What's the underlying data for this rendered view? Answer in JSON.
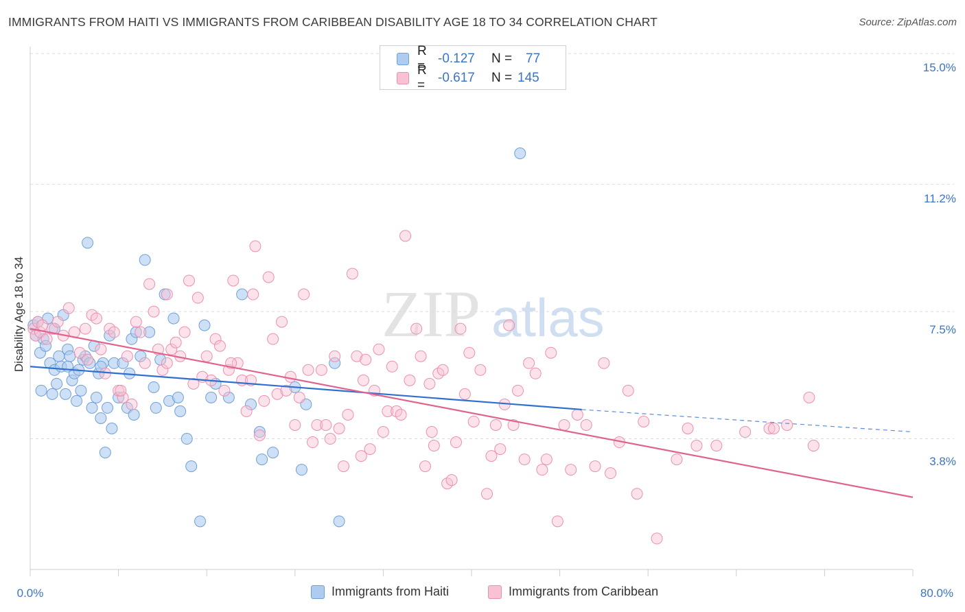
{
  "title": "IMMIGRANTS FROM HAITI VS IMMIGRANTS FROM CARIBBEAN DISABILITY AGE 18 TO 34 CORRELATION CHART",
  "source": "Source: ZipAtlas.com",
  "watermark": {
    "zip": "ZIP",
    "atlas": "atlas"
  },
  "legend": {
    "rows": [
      {
        "r_label": "R =",
        "r_value": "-0.127",
        "n_label": "N =",
        "n_value": "77"
      },
      {
        "r_label": "R =",
        "r_value": "-0.617",
        "n_label": "N =",
        "n_value": "145"
      }
    ]
  },
  "bottom_legend": [
    "Immigrants from Haiti",
    "Immigrants from Caribbean"
  ],
  "colors": {
    "haiti_fill": "#aecbf0",
    "haiti_stroke": "#6f9fd8",
    "haiti_line": "#2f6fd0",
    "carib_fill": "#f9c2d2",
    "carib_stroke": "#ec8fae",
    "carib_line": "#e0628e",
    "tick_label": "#3a74c9",
    "grid": "#dddddd"
  },
  "chart_data": {
    "type": "scatter",
    "title": "IMMIGRANTS FROM HAITI VS IMMIGRANTS FROM CARIBBEAN DISABILITY AGE 18 TO 34 CORRELATION CHART",
    "xlabel": "",
    "ylabel": "Disability Age 18 to 34",
    "xlim": [
      0,
      80
    ],
    "ylim": [
      0,
      16.2
    ],
    "x_tick_labels": [
      "0.0%",
      "80.0%"
    ],
    "y_ticks": [
      3.8,
      7.5,
      11.2,
      15.0
    ],
    "y_tick_labels": [
      "3.8%",
      "7.5%",
      "11.2%",
      "15.0%"
    ],
    "grid": "horizontal dashed",
    "legend_placement": "top-center",
    "series": [
      {
        "name": "Immigrants from Haiti",
        "color": "#aecbf0",
        "trend": {
          "x": [
            0,
            50
          ],
          "y": [
            5.9,
            4.65
          ],
          "dashed_extension": {
            "x": [
              50,
              80
            ],
            "y": [
              4.65,
              4.0
            ]
          }
        },
        "points": [
          [
            0.3,
            7.1
          ],
          [
            0.5,
            6.8
          ],
          [
            0.7,
            7.2
          ],
          [
            0.9,
            6.3
          ],
          [
            1.0,
            5.2
          ],
          [
            1.2,
            6.7
          ],
          [
            1.4,
            6.5
          ],
          [
            1.6,
            7.3
          ],
          [
            1.8,
            6.0
          ],
          [
            2.0,
            5.1
          ],
          [
            2.2,
            5.8
          ],
          [
            2.4,
            5.4
          ],
          [
            2.6,
            6.2
          ],
          [
            2.8,
            5.9
          ],
          [
            3.0,
            7.4
          ],
          [
            3.2,
            5.1
          ],
          [
            3.4,
            6.4
          ],
          [
            3.6,
            6.2
          ],
          [
            3.8,
            5.5
          ],
          [
            4.0,
            5.7
          ],
          [
            4.2,
            4.9
          ],
          [
            4.4,
            5.8
          ],
          [
            4.6,
            5.2
          ],
          [
            4.8,
            6.1
          ],
          [
            5.0,
            6.2
          ],
          [
            5.2,
            9.5
          ],
          [
            5.4,
            6.0
          ],
          [
            5.6,
            4.7
          ],
          [
            5.8,
            6.5
          ],
          [
            6.0,
            5.0
          ],
          [
            6.2,
            5.7
          ],
          [
            6.4,
            4.4
          ],
          [
            6.6,
            6.0
          ],
          [
            6.8,
            3.4
          ],
          [
            7.0,
            4.7
          ],
          [
            7.2,
            6.8
          ],
          [
            7.4,
            4.1
          ],
          [
            7.6,
            6.0
          ],
          [
            8.0,
            5.0
          ],
          [
            8.4,
            6.0
          ],
          [
            8.8,
            4.7
          ],
          [
            9.0,
            5.7
          ],
          [
            9.2,
            6.7
          ],
          [
            9.4,
            4.5
          ],
          [
            9.6,
            6.9
          ],
          [
            10.0,
            6.2
          ],
          [
            10.4,
            9.0
          ],
          [
            10.8,
            6.9
          ],
          [
            11.2,
            5.3
          ],
          [
            11.4,
            4.7
          ],
          [
            11.8,
            6.1
          ],
          [
            12.2,
            8.0
          ],
          [
            12.6,
            4.9
          ],
          [
            13.0,
            7.3
          ],
          [
            13.4,
            5.0
          ],
          [
            13.6,
            4.6
          ],
          [
            14.2,
            3.8
          ],
          [
            14.6,
            3.0
          ],
          [
            15.4,
            1.4
          ],
          [
            15.8,
            7.1
          ],
          [
            16.4,
            5.0
          ],
          [
            16.8,
            5.4
          ],
          [
            18.0,
            5.0
          ],
          [
            19.2,
            8.0
          ],
          [
            20.0,
            4.8
          ],
          [
            20.8,
            4.0
          ],
          [
            21.0,
            3.2
          ],
          [
            22.0,
            3.4
          ],
          [
            24.0,
            5.3
          ],
          [
            25.0,
            4.8
          ],
          [
            27.6,
            6.0
          ],
          [
            28.0,
            1.4
          ],
          [
            24.6,
            2.9
          ],
          [
            6.4,
            5.9
          ],
          [
            3.4,
            5.9
          ],
          [
            2.2,
            7.0
          ],
          [
            44.4,
            12.1
          ]
        ]
      },
      {
        "name": "Immigrants from Caribbean",
        "color": "#f9c2d2",
        "trend": {
          "x": [
            0,
            80
          ],
          "y": [
            7.0,
            2.1
          ]
        },
        "points": [
          [
            0.3,
            7.0
          ],
          [
            0.5,
            6.8
          ],
          [
            0.7,
            7.2
          ],
          [
            0.9,
            6.9
          ],
          [
            1.1,
            7.1
          ],
          [
            1.5,
            6.7
          ],
          [
            2.0,
            7.0
          ],
          [
            2.5,
            7.2
          ],
          [
            3.0,
            6.8
          ],
          [
            3.5,
            7.6
          ],
          [
            4.0,
            6.9
          ],
          [
            4.5,
            6.3
          ],
          [
            5.0,
            7.0
          ],
          [
            5.2,
            6.1
          ],
          [
            5.6,
            7.4
          ],
          [
            6.0,
            7.3
          ],
          [
            6.4,
            6.4
          ],
          [
            6.8,
            5.7
          ],
          [
            7.2,
            7.0
          ],
          [
            7.6,
            6.9
          ],
          [
            8.0,
            5.2
          ],
          [
            8.4,
            5.0
          ],
          [
            8.8,
            6.2
          ],
          [
            9.2,
            4.8
          ],
          [
            9.6,
            7.2
          ],
          [
            10.0,
            6.9
          ],
          [
            10.4,
            6.0
          ],
          [
            10.8,
            8.3
          ],
          [
            11.2,
            7.5
          ],
          [
            11.6,
            6.4
          ],
          [
            12.0,
            5.8
          ],
          [
            12.4,
            6.0
          ],
          [
            12.8,
            6.4
          ],
          [
            13.2,
            6.6
          ],
          [
            13.6,
            6.2
          ],
          [
            14.0,
            6.9
          ],
          [
            14.4,
            8.4
          ],
          [
            14.8,
            5.4
          ],
          [
            15.2,
            7.9
          ],
          [
            15.6,
            5.6
          ],
          [
            16.0,
            6.2
          ],
          [
            16.4,
            5.5
          ],
          [
            16.8,
            6.7
          ],
          [
            17.2,
            6.5
          ],
          [
            17.6,
            5.2
          ],
          [
            18.0,
            5.8
          ],
          [
            18.4,
            8.4
          ],
          [
            18.8,
            6.0
          ],
          [
            19.2,
            5.5
          ],
          [
            19.6,
            4.6
          ],
          [
            20.0,
            5.5
          ],
          [
            20.4,
            9.4
          ],
          [
            20.8,
            3.9
          ],
          [
            21.2,
            4.9
          ],
          [
            21.6,
            8.5
          ],
          [
            22.0,
            6.7
          ],
          [
            22.4,
            5.1
          ],
          [
            22.8,
            7.2
          ],
          [
            23.2,
            5.2
          ],
          [
            23.6,
            5.6
          ],
          [
            24.0,
            4.2
          ],
          [
            24.4,
            5.0
          ],
          [
            24.8,
            8.0
          ],
          [
            25.2,
            5.8
          ],
          [
            25.6,
            3.7
          ],
          [
            26.0,
            4.2
          ],
          [
            26.4,
            5.8
          ],
          [
            26.8,
            4.2
          ],
          [
            27.2,
            3.8
          ],
          [
            27.6,
            6.2
          ],
          [
            28.0,
            4.1
          ],
          [
            28.4,
            3.0
          ],
          [
            28.8,
            4.5
          ],
          [
            29.2,
            8.6
          ],
          [
            29.6,
            6.2
          ],
          [
            30.0,
            3.3
          ],
          [
            30.4,
            6.1
          ],
          [
            30.8,
            3.5
          ],
          [
            31.2,
            5.2
          ],
          [
            31.6,
            6.4
          ],
          [
            32.0,
            4.0
          ],
          [
            32.4,
            4.6
          ],
          [
            32.8,
            5.9
          ],
          [
            33.2,
            4.6
          ],
          [
            33.6,
            4.5
          ],
          [
            34.0,
            9.7
          ],
          [
            34.4,
            5.5
          ],
          [
            35.0,
            7.0
          ],
          [
            35.4,
            6.2
          ],
          [
            35.8,
            3.0
          ],
          [
            36.2,
            5.4
          ],
          [
            36.6,
            3.6
          ],
          [
            37.0,
            5.7
          ],
          [
            37.4,
            5.8
          ],
          [
            37.8,
            2.5
          ],
          [
            38.2,
            2.6
          ],
          [
            38.6,
            3.7
          ],
          [
            39.0,
            7.0
          ],
          [
            39.4,
            5.1
          ],
          [
            39.8,
            6.3
          ],
          [
            40.2,
            4.3
          ],
          [
            40.8,
            5.8
          ],
          [
            41.4,
            2.2
          ],
          [
            41.8,
            3.3
          ],
          [
            42.2,
            4.2
          ],
          [
            43.0,
            4.8
          ],
          [
            43.4,
            7.1
          ],
          [
            43.8,
            4.2
          ],
          [
            44.2,
            5.2
          ],
          [
            44.8,
            3.2
          ],
          [
            45.2,
            6.0
          ],
          [
            45.8,
            5.7
          ],
          [
            46.4,
            2.9
          ],
          [
            46.8,
            3.2
          ],
          [
            47.2,
            6.3
          ],
          [
            47.8,
            1.4
          ],
          [
            48.4,
            4.2
          ],
          [
            49.0,
            2.9
          ],
          [
            49.6,
            4.5
          ],
          [
            50.4,
            4.2
          ],
          [
            51.2,
            3.0
          ],
          [
            52.0,
            6.0
          ],
          [
            52.6,
            2.8
          ],
          [
            53.4,
            3.7
          ],
          [
            54.2,
            5.2
          ],
          [
            55.0,
            2.2
          ],
          [
            55.6,
            4.3
          ],
          [
            56.8,
            0.9
          ],
          [
            58.6,
            3.2
          ],
          [
            59.6,
            4.1
          ],
          [
            60.4,
            3.6
          ],
          [
            62.2,
            3.6
          ],
          [
            64.8,
            4.0
          ],
          [
            67.0,
            4.1
          ],
          [
            67.4,
            4.1
          ],
          [
            68.6,
            4.2
          ],
          [
            70.6,
            5.0
          ],
          [
            71.0,
            3.6
          ],
          [
            12.4,
            8.0
          ],
          [
            20.2,
            8.0
          ],
          [
            30.2,
            5.5
          ],
          [
            18.2,
            6.0
          ],
          [
            8.2,
            5.2
          ],
          [
            36.4,
            4.0
          ],
          [
            42.6,
            3.5
          ]
        ]
      }
    ]
  }
}
